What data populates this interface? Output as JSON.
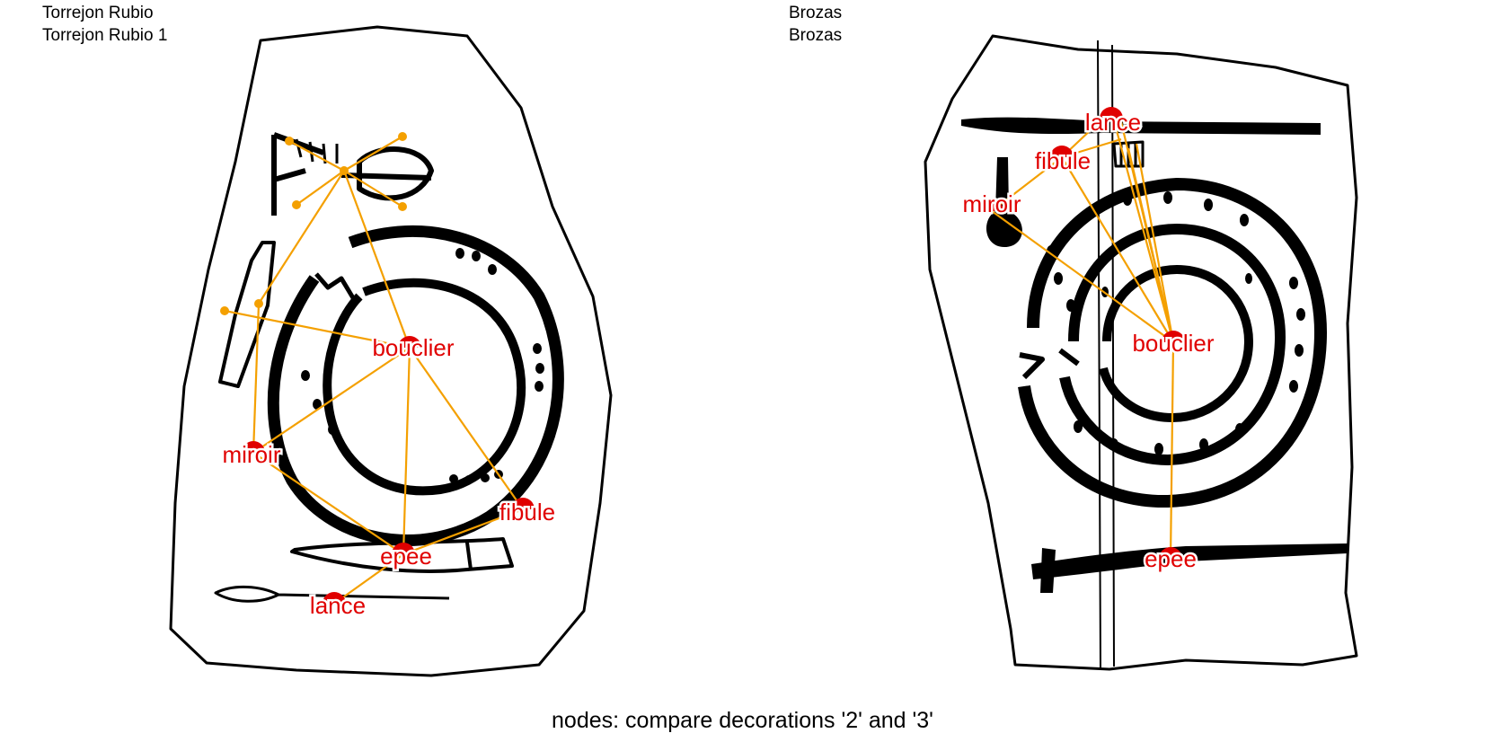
{
  "left_panel": {
    "site": "Torrejon Rubio",
    "stele": "Torrejon Rubio 1",
    "nodes": [
      {
        "id": "bouclier",
        "label": "bouclier"
      },
      {
        "id": "miroir",
        "label": "miroir"
      },
      {
        "id": "fibule",
        "label": "fibule"
      },
      {
        "id": "epee",
        "label": "epee"
      },
      {
        "id": "lance",
        "label": "lance"
      }
    ]
  },
  "right_panel": {
    "site": "Brozas",
    "stele": "Brozas",
    "nodes": [
      {
        "id": "lance",
        "label": "lance"
      },
      {
        "id": "fibule",
        "label": "fibule"
      },
      {
        "id": "miroir",
        "label": "miroir"
      },
      {
        "id": "bouclier",
        "label": "bouclier"
      },
      {
        "id": "epee",
        "label": "epee"
      }
    ]
  },
  "caption": "nodes: compare decorations '2' and '3'",
  "colors": {
    "node_label": "#e00000",
    "edge": "#f4a000",
    "node_marker": "#e00000"
  }
}
